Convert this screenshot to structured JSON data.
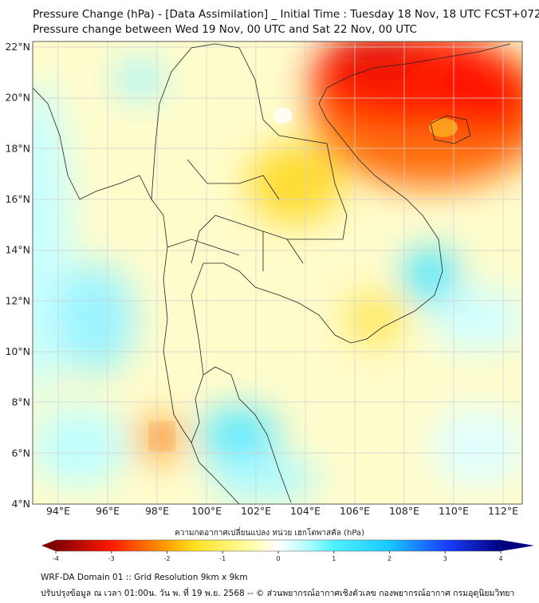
{
  "title": {
    "line1": "Pressure Change (hPa) - [Data Assimilation] _ Initial Time : Tuesday 18 Nov, 18 UTC FCST+072",
    "line2": "Pressure change between Wed 19 Nov, 00 UTC and Sat 22 Nov, 00 UTC"
  },
  "map": {
    "lat_labels": [
      "22°N",
      "20°N",
      "18°N",
      "16°N",
      "14°N",
      "12°N",
      "10°N",
      "8°N",
      "6°N",
      "4°N"
    ],
    "lon_labels": [
      "94°E",
      "96°E",
      "98°E",
      "100°E",
      "102°E",
      "104°E",
      "106°E",
      "108°E",
      "110°E",
      "112°E"
    ],
    "lat_range": [
      4,
      22
    ],
    "lon_range": [
      93,
      112.8
    ]
  },
  "colorbar": {
    "title": "ความกดอากาศเปลี่ยนแปลง หน่วย เฮกโตพาสคัล (hPa)",
    "ticks": [
      "-4",
      "-3",
      "-2",
      "-1",
      "0",
      "1",
      "2",
      "3",
      "4"
    ],
    "range": [
      -4,
      4
    ],
    "colors": [
      "#800000",
      "#ff1a00",
      "#ffa000",
      "#ffe020",
      "#ffffa8",
      "#ffffff",
      "#b8ffff",
      "#50f0ff",
      "#18c8ff",
      "#1a40ff",
      "#000080"
    ]
  },
  "footer": {
    "line1": "WRF-DA Domain 01 :: Grid Resolution 9km x 9km",
    "line2": "ปรับปรุงข้อมูล ณ เวลา 01:00น. วัน พ. ที่ 19 พ.ย. 2568 -- © ส่วนพยากรณ์อากาศเชิงตัวเลข กองพยากรณ์อากาศ กรมอุตุนิยมวิทยา"
  }
}
